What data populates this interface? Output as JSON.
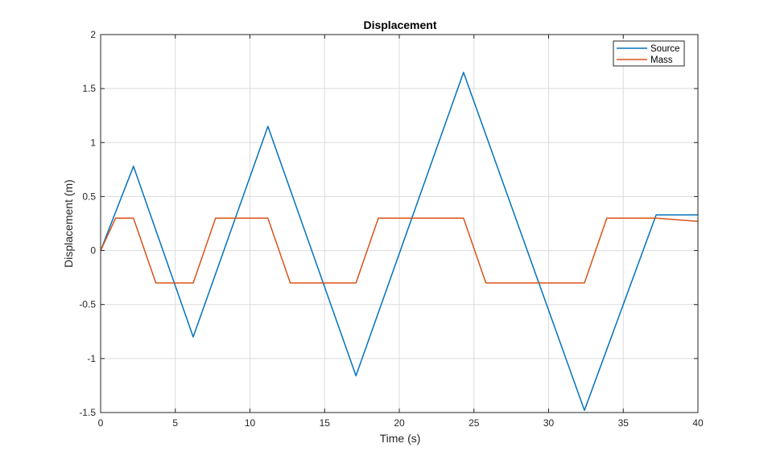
{
  "chart_data": {
    "type": "line",
    "title": "Displacement",
    "xlabel": "Time (s)",
    "ylabel": "Displacement (m)",
    "xlim": [
      0,
      40
    ],
    "ylim": [
      -1.5,
      2
    ],
    "xticks": [
      0,
      5,
      10,
      15,
      20,
      25,
      30,
      35,
      40
    ],
    "yticks": [
      -1.5,
      -1,
      -0.5,
      0,
      0.5,
      1,
      1.5,
      2
    ],
    "xtick_labels": [
      "0",
      "5",
      "10",
      "15",
      "20",
      "25",
      "30",
      "35",
      "40"
    ],
    "ytick_labels": [
      "-1.5",
      "-1",
      "-0.5",
      "0",
      "0.5",
      "1",
      "1.5",
      "2"
    ],
    "grid": true,
    "legend_position": "top-right",
    "series": [
      {
        "name": "Source",
        "color": "#0072BD",
        "x": [
          0,
          2.2,
          6.2,
          11.2,
          17.1,
          24.3,
          32.4,
          37.2,
          40
        ],
        "y": [
          0,
          0.78,
          -0.8,
          1.15,
          -1.16,
          1.65,
          -1.48,
          0.33,
          0.33
        ]
      },
      {
        "name": "Mass",
        "color": "#D95319",
        "x": [
          0,
          1.0,
          2.2,
          3.7,
          6.2,
          7.7,
          11.2,
          12.7,
          17.1,
          18.6,
          24.3,
          25.8,
          32.4,
          33.9,
          37.2,
          40
        ],
        "y": [
          0,
          0.3,
          0.3,
          -0.3,
          -0.3,
          0.3,
          0.3,
          -0.3,
          -0.3,
          0.3,
          0.3,
          -0.3,
          -0.3,
          0.3,
          0.3,
          0.27
        ]
      }
    ]
  }
}
